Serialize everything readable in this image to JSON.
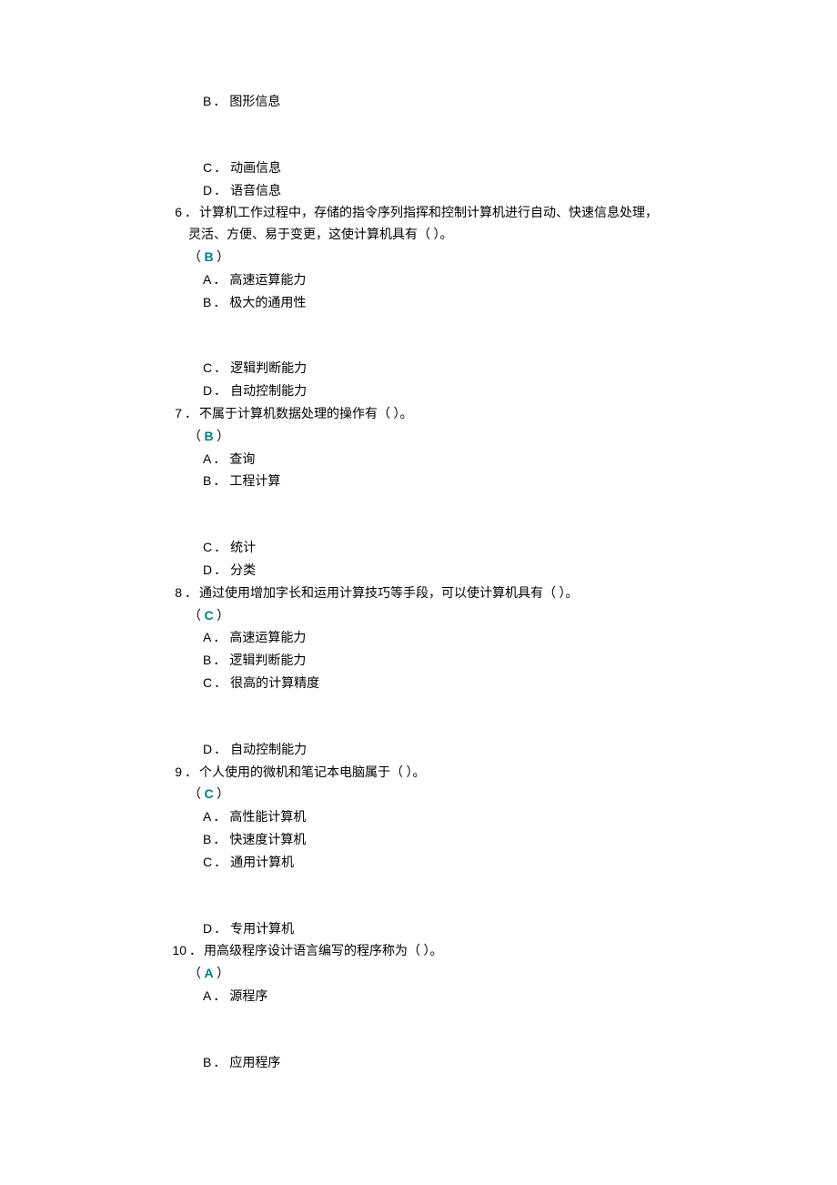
{
  "answerColor": "#007f7f",
  "partialOptions": {
    "b": {
      "letter": "B",
      "text": "图形信息"
    },
    "c": {
      "letter": "C",
      "text": "动画信息"
    },
    "d": {
      "letter": "D",
      "text": "语音信息"
    }
  },
  "questions": [
    {
      "num": "6",
      "text": "计算机工作过程中，存储的指令序列指挥和控制计算机进行自动、快速信息处理，",
      "text2": "灵活、方便、易于变更，这使计算机具有（ ）。",
      "answer": "B",
      "options": [
        {
          "letter": "A",
          "text": "高速运算能力"
        },
        {
          "letter": "B",
          "text": "极大的通用性",
          "gapAfter": true
        },
        {
          "letter": "C",
          "text": "逻辑判断能力"
        },
        {
          "letter": "D",
          "text": "自动控制能力"
        }
      ]
    },
    {
      "num": "7",
      "text": "不属于计算机数据处理的操作有（ ）。",
      "answer": "B",
      "options": [
        {
          "letter": "A",
          "text": "查询"
        },
        {
          "letter": "B",
          "text": "工程计算",
          "gapAfter": true
        },
        {
          "letter": "C",
          "text": "统计"
        },
        {
          "letter": "D",
          "text": "分类"
        }
      ]
    },
    {
      "num": "8",
      "text": "通过使用增加字长和运用计算技巧等手段，可以使计算机具有（ ）。",
      "answer": "C",
      "options": [
        {
          "letter": "A",
          "text": "高速运算能力"
        },
        {
          "letter": "B",
          "text": "逻辑判断能力"
        },
        {
          "letter": "C",
          "text": "很高的计算精度",
          "gapAfter": true
        },
        {
          "letter": "D",
          "text": "自动控制能力"
        }
      ]
    },
    {
      "num": "9",
      "text": "个人使用的微机和笔记本电脑属于（ ）。",
      "answer": "C",
      "options": [
        {
          "letter": "A",
          "text": "高性能计算机"
        },
        {
          "letter": "B",
          "text": "快速度计算机"
        },
        {
          "letter": "C",
          "text": "通用计算机",
          "gapAfter": true
        },
        {
          "letter": "D",
          "text": "专用计算机"
        }
      ]
    },
    {
      "num": "10",
      "text": "用高级程序设计语言编写的程序称为（ ）。",
      "answer": "A",
      "options": [
        {
          "letter": "A",
          "text": "源程序",
          "gapAfter": true
        },
        {
          "letter": "B",
          "text": "应用程序"
        }
      ]
    }
  ]
}
